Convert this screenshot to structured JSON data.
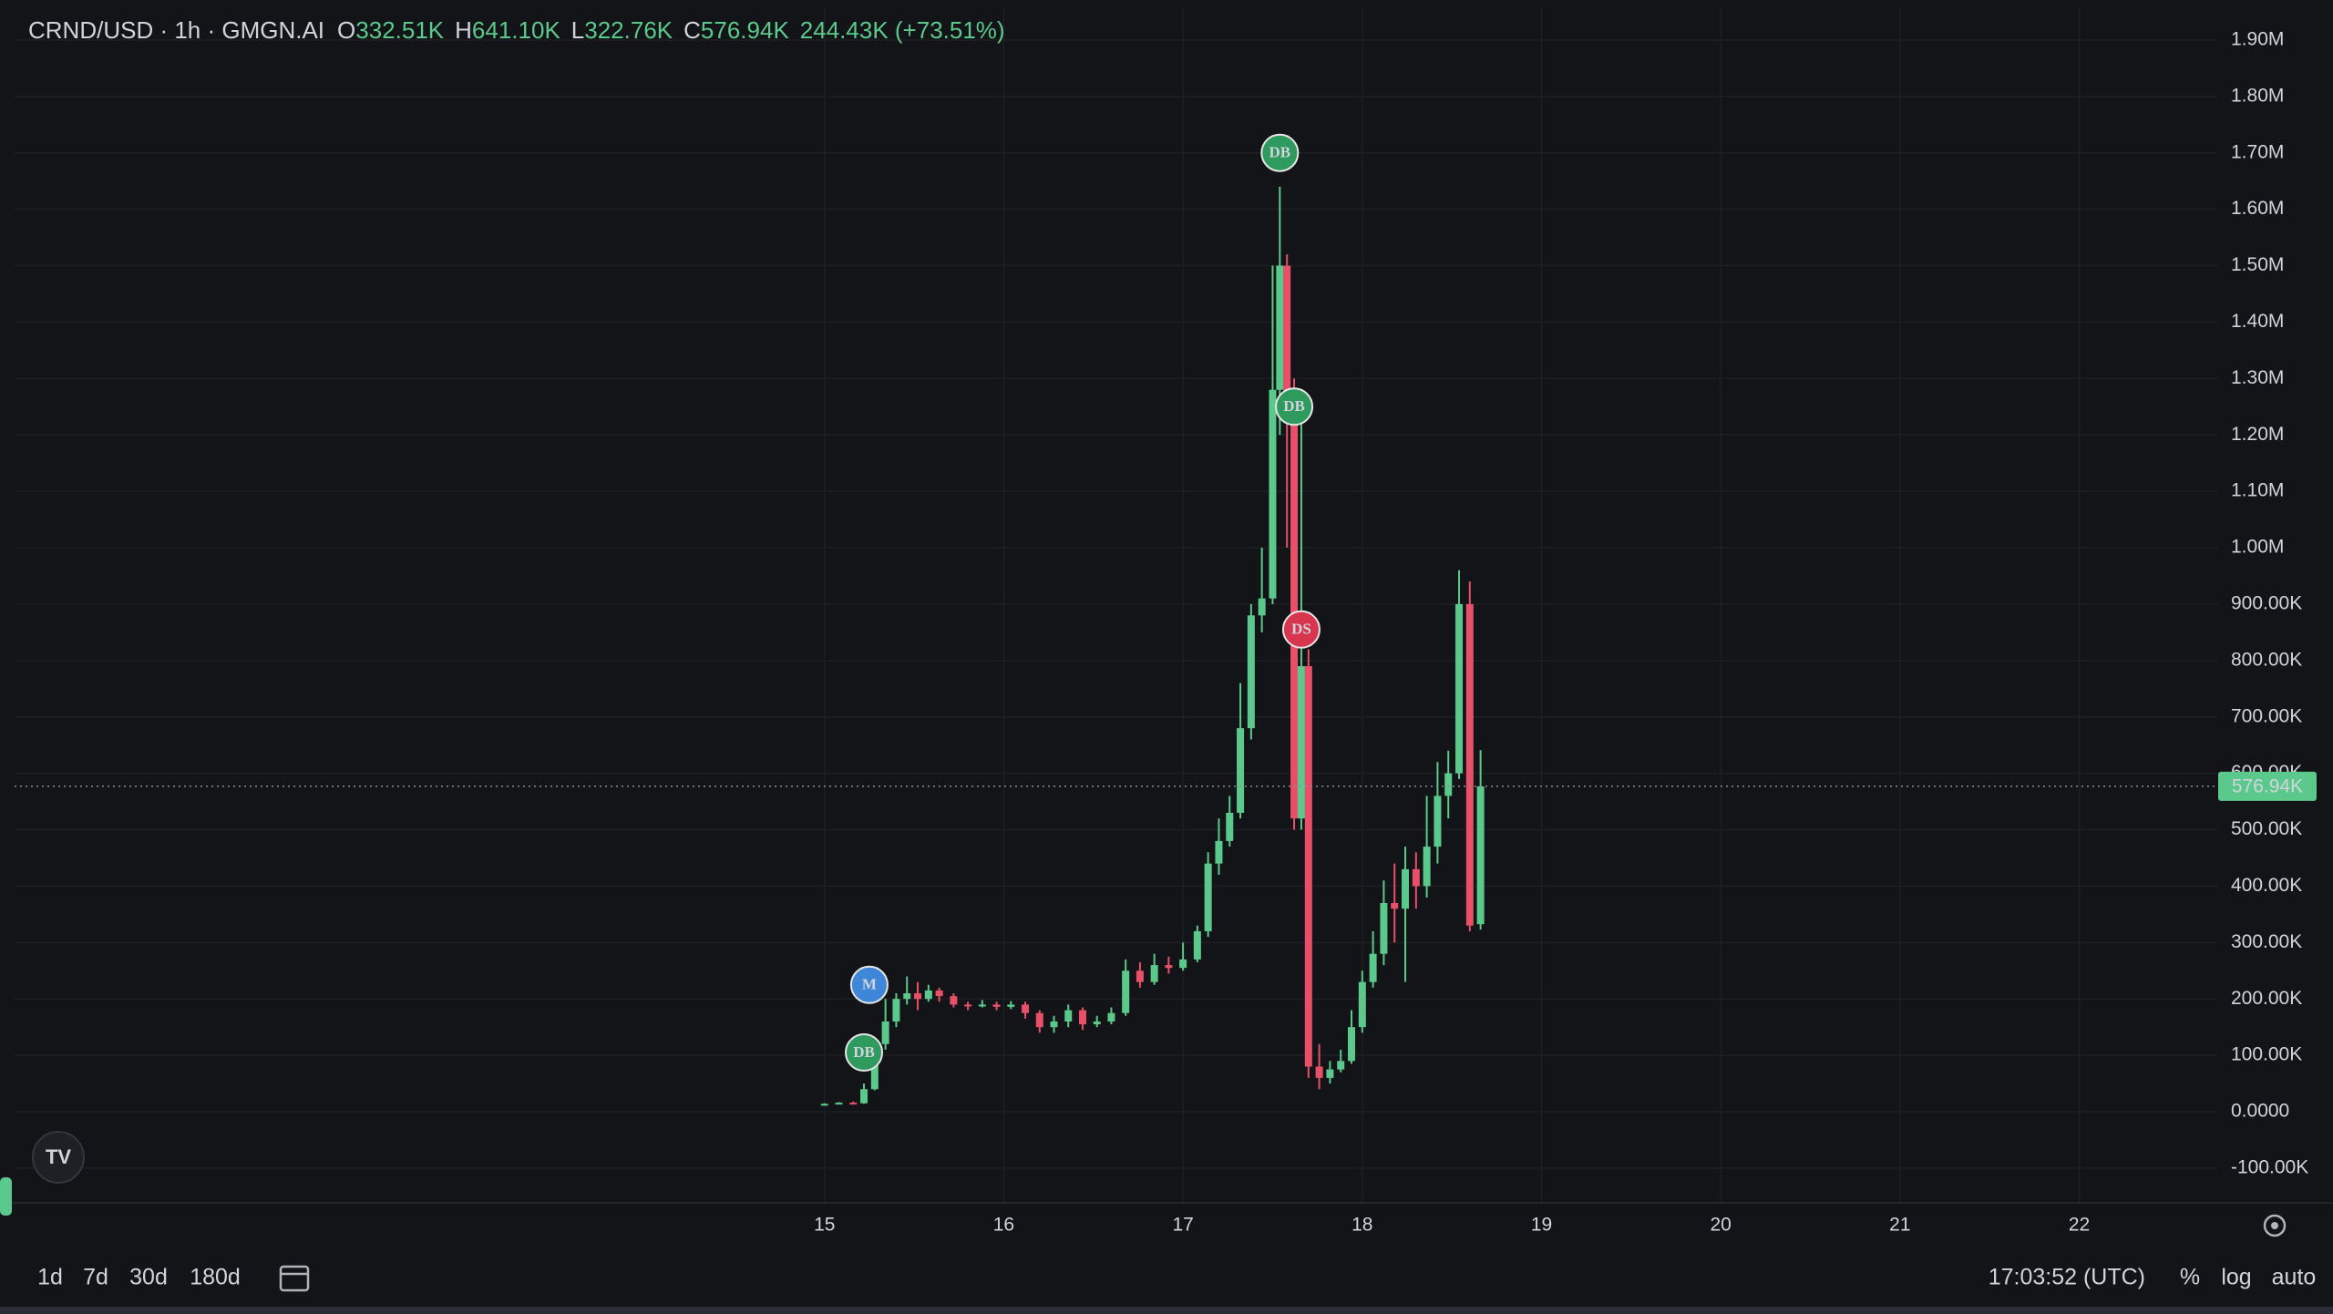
{
  "chart_data": {
    "type": "candlestick",
    "symbol": "CRND/USD · 1h · GMGN.AI",
    "ohlc": [
      {
        "label": "O",
        "value": "332.51K"
      },
      {
        "label": "H",
        "value": "641.10K"
      },
      {
        "label": "L",
        "value": "322.76K"
      },
      {
        "label": "C",
        "value": "576.94K"
      }
    ],
    "change": "244.43K (+73.51%)",
    "x": [
      15.0,
      15.08,
      15.16,
      15.22,
      15.28,
      15.34,
      15.4,
      15.46,
      15.52,
      15.58,
      15.64,
      15.72,
      15.8,
      15.88,
      15.96,
      16.04,
      16.12,
      16.2,
      16.28,
      16.36,
      16.44,
      16.52,
      16.6,
      16.68,
      16.76,
      16.84,
      16.92,
      17.0,
      17.08,
      17.14,
      17.2,
      17.26,
      17.32,
      17.38,
      17.44,
      17.5,
      17.54,
      17.58,
      17.62,
      17.66,
      17.7,
      17.76,
      17.82,
      17.88,
      17.94,
      18.0,
      18.06,
      18.12,
      18.18,
      18.24,
      18.3,
      18.36,
      18.42,
      18.48,
      18.54,
      18.6,
      18.66
    ],
    "open": [
      12000,
      14000,
      16000,
      15000,
      40000,
      120000,
      160000,
      200000,
      210000,
      200000,
      215000,
      205000,
      190000,
      188000,
      190000,
      186000,
      190000,
      175000,
      150000,
      160000,
      180000,
      155000,
      160000,
      175000,
      250000,
      230000,
      260000,
      255000,
      270000,
      320000,
      440000,
      480000,
      530000,
      680000,
      880000,
      910000,
      1280000,
      1500000,
      1250000,
      520000,
      790000,
      80000,
      60000,
      75000,
      90000,
      150000,
      230000,
      280000,
      370000,
      360000,
      430000,
      400000,
      470000,
      560000,
      600000,
      900000,
      332510
    ],
    "high": [
      15000,
      17000,
      18000,
      50000,
      130000,
      200000,
      210000,
      240000,
      230000,
      225000,
      220000,
      210000,
      195000,
      198000,
      195000,
      196000,
      195000,
      180000,
      170000,
      190000,
      185000,
      170000,
      185000,
      270000,
      265000,
      280000,
      275000,
      300000,
      330000,
      460000,
      520000,
      560000,
      760000,
      900000,
      1000000,
      1500000,
      1640000,
      1520000,
      1300000,
      1250000,
      820000,
      120000,
      90000,
      110000,
      180000,
      250000,
      320000,
      410000,
      440000,
      470000,
      460000,
      560000,
      620000,
      640000,
      960000,
      940000,
      641100
    ],
    "low": [
      11000,
      13000,
      14000,
      14000,
      38000,
      110000,
      150000,
      190000,
      180000,
      195000,
      195000,
      185000,
      180000,
      185000,
      180000,
      182000,
      165000,
      140000,
      140000,
      150000,
      145000,
      150000,
      155000,
      170000,
      220000,
      225000,
      245000,
      250000,
      265000,
      310000,
      420000,
      470000,
      520000,
      660000,
      850000,
      900000,
      1200000,
      1000000,
      500000,
      500000,
      60000,
      40000,
      50000,
      70000,
      85000,
      140000,
      220000,
      260000,
      300000,
      230000,
      360000,
      380000,
      440000,
      520000,
      590000,
      320000,
      322760
    ],
    "close": [
      14000,
      16000,
      15000,
      40000,
      120000,
      160000,
      200000,
      210000,
      200000,
      215000,
      205000,
      190000,
      188000,
      190000,
      186000,
      190000,
      175000,
      150000,
      160000,
      180000,
      155000,
      160000,
      175000,
      250000,
      230000,
      260000,
      255000,
      270000,
      320000,
      440000,
      480000,
      530000,
      680000,
      880000,
      910000,
      1280000,
      1500000,
      1250000,
      520000,
      790000,
      80000,
      60000,
      75000,
      90000,
      150000,
      230000,
      280000,
      370000,
      360000,
      430000,
      400000,
      470000,
      560000,
      600000,
      900000,
      330000,
      576940
    ],
    "up_color": "#5cc98c",
    "down_color": "#e8506a",
    "last_price": {
      "value": 576940,
      "label": "576.94K"
    },
    "markers": [
      {
        "label": "DB",
        "x": 17.54,
        "price": 1700000,
        "color": "#2e9a5e"
      },
      {
        "label": "DB",
        "x": 17.62,
        "price": 1250000,
        "color": "#2e9a5e"
      },
      {
        "label": "DS",
        "x": 17.66,
        "price": 855000,
        "color": "#d8354f"
      },
      {
        "label": "M",
        "x": 15.25,
        "price": 225000,
        "color": "#3d86d8"
      },
      {
        "label": "DB",
        "x": 15.22,
        "price": 105000,
        "color": "#2e9a5e"
      }
    ],
    "xlim": [
      10.4,
      22.77
    ],
    "xticks": [
      15,
      16,
      17,
      18,
      19,
      20,
      21,
      22
    ],
    "ylim": [
      -161500,
      1971000
    ],
    "yticks": [
      {
        "value": 1900000,
        "label": "1.90M"
      },
      {
        "value": 1800000,
        "label": "1.80M"
      },
      {
        "value": 1700000,
        "label": "1.70M"
      },
      {
        "value": 1600000,
        "label": "1.60M"
      },
      {
        "value": 1500000,
        "label": "1.50M"
      },
      {
        "value": 1400000,
        "label": "1.40M"
      },
      {
        "value": 1300000,
        "label": "1.30M"
      },
      {
        "value": 1200000,
        "label": "1.20M"
      },
      {
        "value": 1100000,
        "label": "1.10M"
      },
      {
        "value": 1000000,
        "label": "1.00M"
      },
      {
        "value": 900000,
        "label": "900.00K"
      },
      {
        "value": 800000,
        "label": "800.00K"
      },
      {
        "value": 700000,
        "label": "700.00K"
      },
      {
        "value": 600000,
        "label": "600.00K"
      },
      {
        "value": 500000,
        "label": "500.00K"
      },
      {
        "value": 400000,
        "label": "400.00K"
      },
      {
        "value": 300000,
        "label": "300.00K"
      },
      {
        "value": 200000,
        "label": "200.00K"
      },
      {
        "value": 100000,
        "label": "100.00K"
      },
      {
        "value": 0,
        "label": "0.0000"
      },
      {
        "value": -100000,
        "label": "-100.00K"
      }
    ],
    "grid": true
  },
  "toolbar": {
    "ranges": [
      "1d",
      "7d",
      "30d",
      "180d"
    ],
    "clock": "17:03:52 (UTC)",
    "options": [
      "%",
      "log",
      "auto"
    ]
  }
}
